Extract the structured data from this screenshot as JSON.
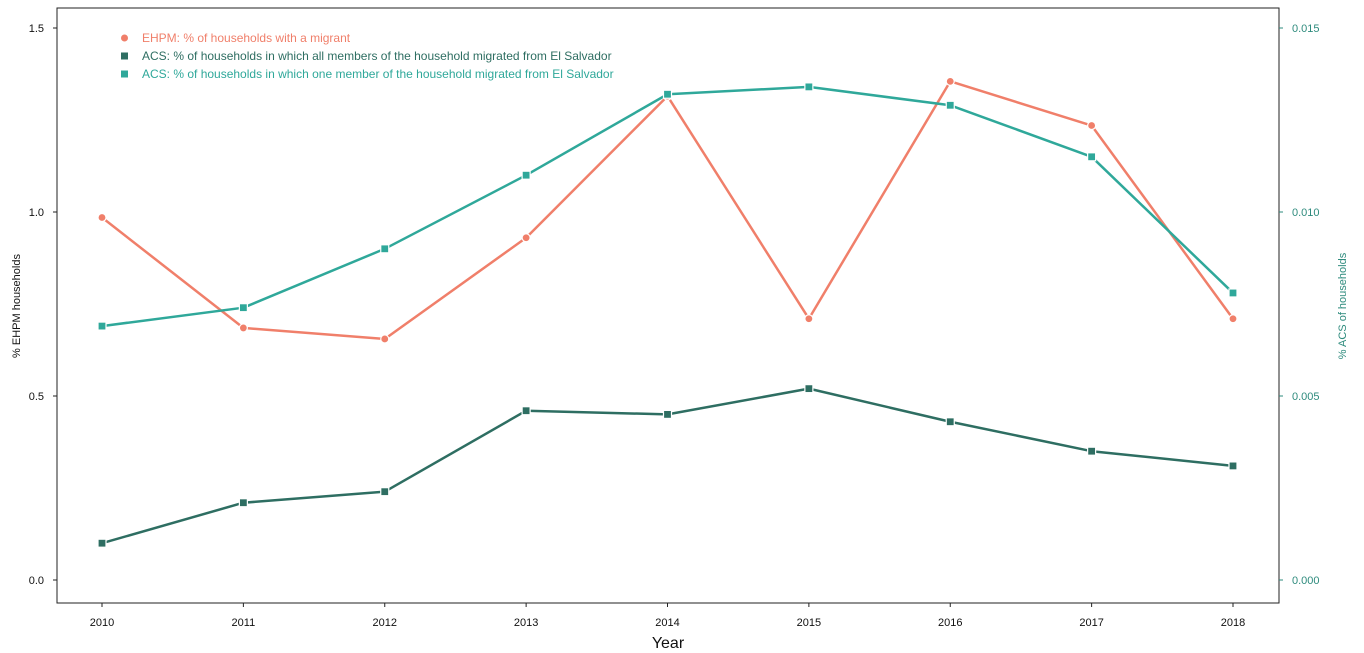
{
  "chart_data": {
    "type": "line",
    "x": [
      2010,
      2011,
      2012,
      2013,
      2014,
      2015,
      2016,
      2017,
      2018
    ],
    "xlabel": "Year",
    "ylabel_left": "% EHPM households",
    "ylabel_right": "% ACS of households",
    "ylim_left": [
      0,
      1.5
    ],
    "ylim_right": [
      0,
      0.015
    ],
    "yticks_left": [
      "0.0",
      "0.5",
      "1.0",
      "1.5"
    ],
    "yticks_right": [
      "0.000",
      "0.005",
      "0.010",
      "0.015"
    ],
    "legend_position": "top-left",
    "grid": false,
    "series": [
      {
        "name": "EHPM: % of households with a migrant",
        "axis": "left",
        "color": "#F07F6A",
        "marker": "circle",
        "values": [
          0.985,
          0.685,
          0.655,
          0.93,
          1.315,
          0.71,
          1.355,
          1.235,
          0.71
        ]
      },
      {
        "name": "ACS: % of households in which all members of the household migrated from El Salvador",
        "axis": "right",
        "color": "#2E6E62",
        "marker": "square",
        "values": [
          0.001,
          0.0021,
          0.0024,
          0.0046,
          0.0045,
          0.0052,
          0.0043,
          0.0035,
          0.0031
        ]
      },
      {
        "name": "ACS: % of households in which one member of the household migrated from El Salvador",
        "axis": "right",
        "color": "#2FA89A",
        "marker": "square",
        "values": [
          0.0069,
          0.0074,
          0.009,
          0.011,
          0.0132,
          0.0134,
          0.0129,
          0.0115,
          0.0078
        ]
      }
    ]
  }
}
